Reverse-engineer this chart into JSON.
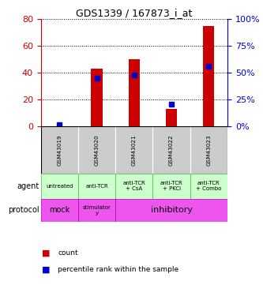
{
  "title": "GDS1339 / 167873_i_at",
  "samples": [
    "GSM43019",
    "GSM43020",
    "GSM43021",
    "GSM43022",
    "GSM43023"
  ],
  "counts": [
    0,
    43,
    50,
    13,
    75
  ],
  "percentile_ranks": [
    1.5,
    45,
    48,
    21,
    56
  ],
  "ylim_left": [
    0,
    80
  ],
  "ylim_right": [
    0,
    100
  ],
  "yticks_left": [
    0,
    20,
    40,
    60,
    80
  ],
  "yticks_right": [
    0,
    25,
    50,
    75,
    100
  ],
  "bar_color": "#cc0000",
  "dot_color": "#0000cc",
  "agent_labels": [
    "untreated",
    "anti-TCR",
    "anti-TCR\n+ CsA",
    "anti-TCR\n+ PKCi",
    "anti-TCR\n+ Combo"
  ],
  "protocol_labels_mock": "mock",
  "protocol_labels_stim": "stimulator\ny",
  "protocol_labels_inhib": "inhibitory",
  "agent_bg_color": "#ccffcc",
  "agent_border_color": "#44bb44",
  "protocol_mock_color": "#ee66ee",
  "protocol_stim_color": "#ee66ee",
  "protocol_inhib_color": "#ee44ee",
  "sample_bg_color": "#cccccc",
  "left_axis_color": "#cc0000",
  "right_axis_color": "#0000cc"
}
